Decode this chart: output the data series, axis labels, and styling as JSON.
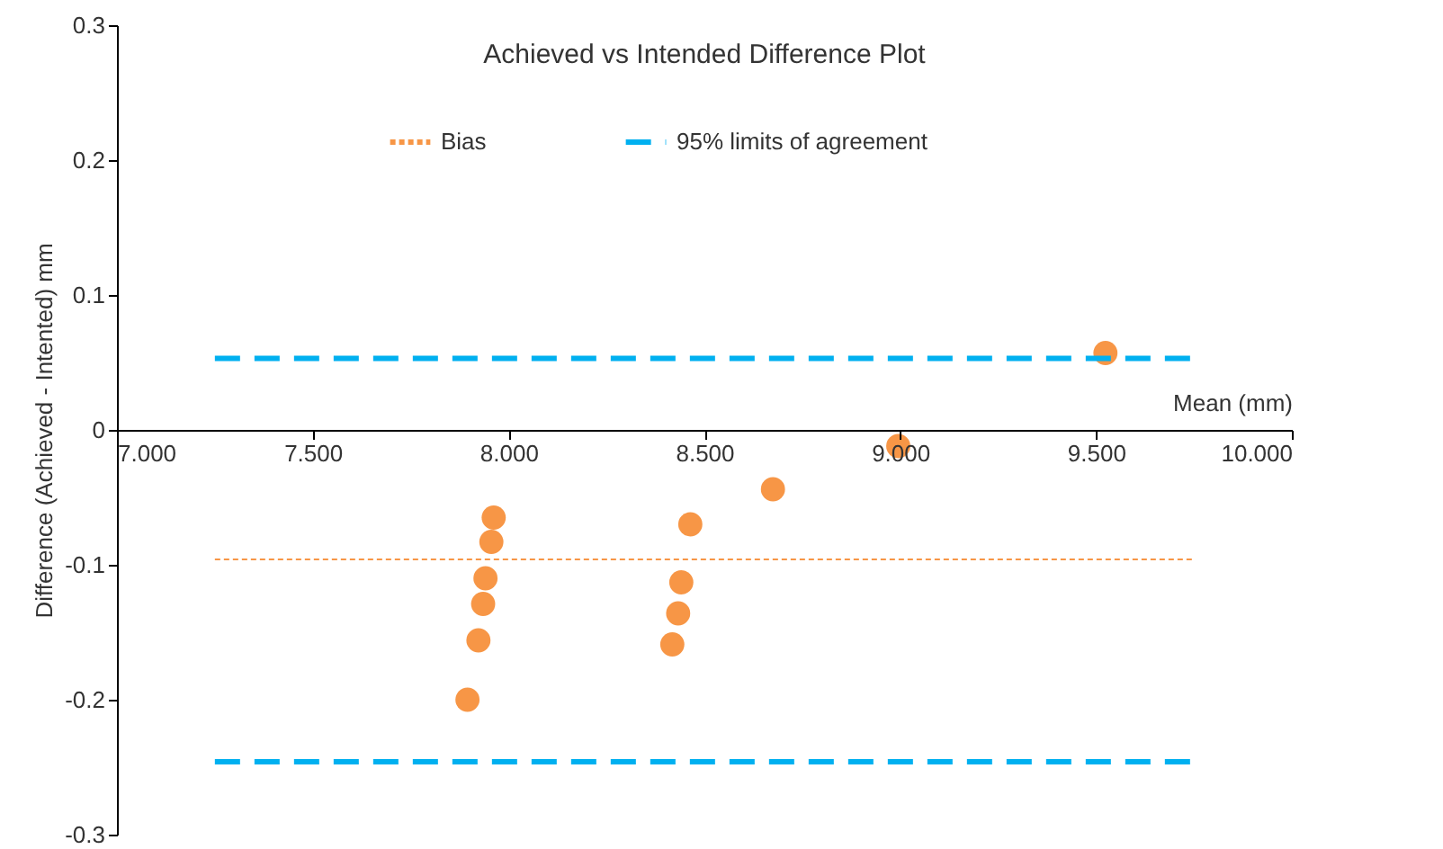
{
  "chart_data": {
    "type": "scatter",
    "title": "Achieved vs Intended Difference Plot",
    "xlabel": "Mean (mm)",
    "ylabel": "Difference (Achieved - Intented) mm",
    "xlim": [
      7,
      10
    ],
    "ylim": [
      -0.3,
      0.3
    ],
    "xticks": [
      {
        "value": 7,
        "label": "7.000"
      },
      {
        "value": 7.5,
        "label": "7.500"
      },
      {
        "value": 8,
        "label": "8.000"
      },
      {
        "value": 8.5,
        "label": "8.500"
      },
      {
        "value": 9,
        "label": "9.000"
      },
      {
        "value": 9.5,
        "label": "9.500"
      },
      {
        "value": 10,
        "label": "10.000"
      }
    ],
    "yticks": [
      -0.3,
      -0.2,
      -0.1,
      0,
      0.1,
      0.2,
      0.3
    ],
    "grid": false,
    "legend": "top",
    "series": [
      {
        "type": "scatter",
        "marker": "circle",
        "color": "#f79646",
        "x": [
          7.962,
          7.956,
          7.941,
          7.935,
          7.923,
          7.895,
          8.464,
          8.441,
          8.433,
          8.418,
          8.675,
          8.995,
          9.524
        ],
        "values": [
          -0.065,
          -0.083,
          -0.11,
          -0.129,
          -0.156,
          -0.2,
          -0.07,
          -0.113,
          -0.136,
          -0.159,
          -0.044,
          -0.012,
          0.057
        ]
      },
      {
        "type": "line",
        "name": "Bias",
        "color": "#f79646",
        "line_style": "dotted",
        "x": [
          7.25,
          9.75
        ],
        "values": [
          -0.096,
          -0.096
        ]
      },
      {
        "type": "line",
        "name": "95% limits of agreement",
        "color": "#00b0f0",
        "line_style": "dashed",
        "x": [
          7.25,
          9.75
        ],
        "values": [
          0.053,
          0.053
        ]
      },
      {
        "type": "line",
        "color": "#00b0f0",
        "line_style": "dashed",
        "x": [
          7.25,
          9.75
        ],
        "values": [
          -0.246,
          -0.246
        ]
      }
    ]
  }
}
